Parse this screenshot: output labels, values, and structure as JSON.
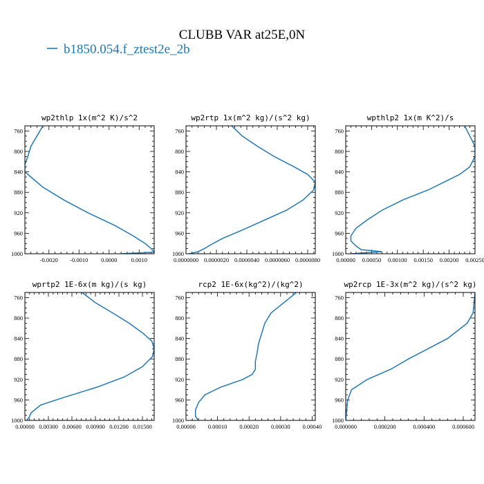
{
  "figure": {
    "title": "CLUBB VAR at25E,0N",
    "legend": [
      {
        "label": "b1850.054.f_ztest2e_2b",
        "color": "#1f77b4"
      }
    ]
  },
  "chart_data": [
    {
      "type": "line",
      "title": "wp2thlp  1x(m^2 K)/s^2",
      "ylim": [
        1000,
        750
      ],
      "yticks": [
        760,
        800,
        840,
        880,
        920,
        960,
        1000
      ],
      "xlim": [
        -0.0028,
        0.0015
      ],
      "xticks": [
        -0.002,
        -0.001,
        0.0,
        0.001
      ],
      "xtick_labels": [
        "-0.0020",
        "-0.0010",
        "0.0000",
        "0.0010"
      ],
      "series": [
        {
          "x": [
            -0.0022,
            -0.0024,
            -0.0026,
            -0.0027,
            -0.0028,
            -0.0028,
            -0.0026,
            -0.0022,
            -0.0015,
            -0.0007,
            0.0002,
            0.0008,
            0.0012,
            0.0014,
            0.0015,
            0.0004
          ],
          "y": [
            750,
            770,
            790,
            810,
            825,
            840,
            850,
            870,
            895,
            920,
            945,
            965,
            980,
            990,
            997,
            1000
          ]
        }
      ]
    },
    {
      "type": "line",
      "title": "wp2rtp  1x(m^2 kg)/(s^2 kg)",
      "ylim": [
        1000,
        750
      ],
      "yticks": [
        760,
        800,
        840,
        880,
        920,
        960,
        1000
      ],
      "xlim": [
        0.0,
        8.5e-06
      ],
      "xticks": [
        0.0,
        2e-06,
        4e-06,
        6e-06,
        8e-06
      ],
      "xtick_labels": [
        "0.0000000",
        "0.0000020",
        "0.0000040",
        "0.0000060",
        "0.0000080"
      ],
      "series": [
        {
          "x": [
            3e-06,
            3.7e-06,
            4.7e-06,
            5.8e-06,
            7.1e-06,
            8e-06,
            8.5e-06,
            8.4e-06,
            7.7e-06,
            6.6e-06,
            5.1e-06,
            3.6e-06,
            2.4e-06,
            1.6e-06,
            1.2e-06,
            8e-07,
            2e-07
          ],
          "y": [
            750,
            770,
            790,
            810,
            830,
            845,
            860,
            875,
            895,
            915,
            935,
            955,
            970,
            983,
            990,
            996,
            1000
          ]
        }
      ]
    },
    {
      "type": "line",
      "title": "wpthlp2  1x(m K^2)/s",
      "ylim": [
        1000,
        750
      ],
      "yticks": [
        760,
        800,
        840,
        880,
        920,
        960,
        1000
      ],
      "xlim": [
        0.0,
        0.0025
      ],
      "xticks": [
        0.0,
        0.0005,
        0.001,
        0.0015,
        0.002,
        0.0025
      ],
      "xtick_labels": [
        "0.00000",
        "0.00050",
        "0.00100",
        "0.00150",
        "0.00200",
        "0.00250"
      ],
      "series": [
        {
          "x": [
            0.0023,
            0.0024,
            0.0025,
            0.0025,
            0.0024,
            0.0022,
            0.0019,
            0.0016,
            0.0011,
            0.0007,
            0.0004,
            0.0002,
            0.0001,
            0.0001,
            0.0002,
            0.0003,
            0.0007,
            0.0001
          ],
          "y": [
            750,
            770,
            790,
            810,
            830,
            845,
            860,
            875,
            895,
            915,
            935,
            950,
            965,
            975,
            985,
            992,
            996,
            1000
          ]
        }
      ]
    },
    {
      "type": "line",
      "title": "wprtp2  1E-6x(m kg)/(s kg)",
      "ylim": [
        1000,
        750
      ],
      "yticks": [
        760,
        800,
        840,
        880,
        920,
        960,
        1000
      ],
      "xlim": [
        0.0,
        0.0165
      ],
      "xticks": [
        0.0,
        0.003,
        0.006,
        0.009,
        0.012,
        0.015
      ],
      "xtick_labels": [
        "0.00000",
        "0.00300",
        "0.00600",
        "0.00900",
        "0.01200",
        "0.01500"
      ],
      "series": [
        {
          "x": [
            0.0073,
            0.009,
            0.0112,
            0.0133,
            0.0151,
            0.0162,
            0.0165,
            0.0163,
            0.015,
            0.0127,
            0.0092,
            0.005,
            0.002,
            0.0008,
            0.0005,
            0.0002
          ],
          "y": [
            750,
            770,
            790,
            810,
            830,
            845,
            860,
            875,
            895,
            915,
            935,
            955,
            970,
            985,
            995,
            1000
          ]
        }
      ]
    },
    {
      "type": "line",
      "title": "rcp2  1E-6x(kg^2)/(kg^2)",
      "ylim": [
        1000,
        750
      ],
      "yticks": [
        760,
        800,
        840,
        880,
        920,
        960,
        1000
      ],
      "xlim": [
        0.0,
        0.00041
      ],
      "xticks": [
        0.0,
        0.0001,
        0.0002,
        0.0003,
        0.0004
      ],
      "xtick_labels": [
        "0.00000",
        "0.00010",
        "0.00020",
        "0.00030",
        "0.00040"
      ],
      "series": [
        {
          "x": [
            0.00035,
            0.00031,
            0.00027,
            0.00025,
            0.00024,
            0.00023,
            0.000225,
            0.00022,
            0.00022,
            0.00021,
            0.00018,
            0.00011,
            6e-05,
            4e-05,
            3e-05,
            3e-05,
            4e-05
          ],
          "y": [
            750,
            770,
            790,
            810,
            830,
            850,
            870,
            885,
            900,
            910,
            920,
            935,
            950,
            965,
            980,
            992,
            1000
          ]
        }
      ]
    },
    {
      "type": "line",
      "title": "wp2rcp  1E-3x(m^2 kg)/(s^2 kg)",
      "ylim": [
        1000,
        750
      ],
      "yticks": [
        760,
        800,
        840,
        880,
        920,
        960,
        1000
      ],
      "xlim": [
        0.0,
        0.00066
      ],
      "xticks": [
        0.0,
        0.0002,
        0.0004,
        0.0006
      ],
      "xtick_labels": [
        "0.000000",
        "0.000200",
        "0.000400",
        "0.000600"
      ],
      "series": [
        {
          "x": [
            0.00066,
            0.000655,
            0.00065,
            0.00062,
            0.00052,
            0.00042,
            0.00032,
            0.00023,
            0.00011,
            3e-05,
            1e-05,
            5e-06,
            0.0
          ],
          "y": [
            750,
            770,
            790,
            810,
            840,
            860,
            880,
            900,
            920,
            940,
            960,
            980,
            1000
          ]
        }
      ]
    }
  ]
}
